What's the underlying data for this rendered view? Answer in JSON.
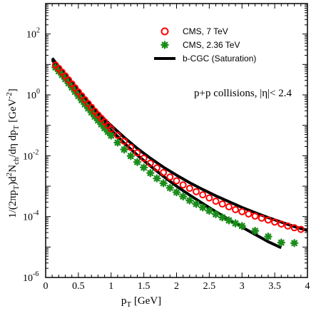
{
  "chart_data": {
    "type": "scatter",
    "xlabel": "p_T [GeV]",
    "ylabel": "1/(2πp_T)d²N_ch/dη dp_T [GeV⁻²]",
    "xlim": [
      0,
      4
    ],
    "ylim": [
      1e-06,
      1000
    ],
    "yscale": "log",
    "x_ticks": [
      "0",
      "0.5",
      "1",
      "1.5",
      "2",
      "2.5",
      "3",
      "3.5",
      "4"
    ],
    "x_tick_values": [
      0,
      0.5,
      1,
      1.5,
      2,
      2.5,
      3,
      3.5,
      4
    ],
    "y_ticks": [
      {
        "value": 1e-06,
        "base": "10",
        "exp": "-6"
      },
      {
        "value": 0.0001,
        "base": "10",
        "exp": "-4"
      },
      {
        "value": 0.01,
        "base": "10",
        "exp": "-2"
      },
      {
        "value": 1,
        "base": "10",
        "exp": "0"
      },
      {
        "value": 100,
        "base": "10",
        "exp": "2"
      }
    ],
    "legend_position": "top-right",
    "annotation": "p+p collisions, |η|< 2.4",
    "series": [
      {
        "name": "CMS, 7 TeV",
        "marker": "open-circle",
        "color": "#ff0000",
        "x": [
          0.15,
          0.2,
          0.25,
          0.3,
          0.35,
          0.4,
          0.45,
          0.5,
          0.55,
          0.6,
          0.65,
          0.7,
          0.75,
          0.8,
          0.85,
          0.9,
          0.95,
          1.0,
          1.1,
          1.2,
          1.3,
          1.4,
          1.5,
          1.6,
          1.7,
          1.8,
          1.9,
          2.0,
          2.1,
          2.2,
          2.3,
          2.4,
          2.5,
          2.6,
          2.7,
          2.8,
          2.9,
          3.0,
          3.1,
          3.2,
          3.3,
          3.4,
          3.5,
          3.6,
          3.7,
          3.8,
          3.9
        ],
        "y": [
          9.5,
          7.4,
          5.6,
          4.2,
          3.1,
          2.3,
          1.7,
          1.25,
          0.93,
          0.69,
          0.52,
          0.39,
          0.29,
          0.22,
          0.17,
          0.13,
          0.099,
          0.076,
          0.047,
          0.03,
          0.019,
          0.0125,
          0.0083,
          0.0057,
          0.004,
          0.0028,
          0.002,
          0.0015,
          0.0011,
          0.00085,
          0.00066,
          0.00052,
          0.00041,
          0.00032,
          0.00026,
          0.00021,
          0.00017,
          0.000145,
          0.000122,
          0.000104,
          8.9e-05,
          7.7e-05,
          6.6e-05,
          5.7e-05,
          4.9e-05,
          4.3e-05,
          3.8e-05
        ]
      },
      {
        "name": "CMS, 2.36 TeV",
        "marker": "asterisk",
        "color": "#1a8c1a",
        "x": [
          0.15,
          0.2,
          0.25,
          0.3,
          0.35,
          0.4,
          0.45,
          0.5,
          0.55,
          0.6,
          0.65,
          0.7,
          0.75,
          0.8,
          0.85,
          0.9,
          0.95,
          1.0,
          1.1,
          1.2,
          1.3,
          1.4,
          1.5,
          1.6,
          1.7,
          1.8,
          1.9,
          2.0,
          2.1,
          2.2,
          2.3,
          2.4,
          2.5,
          2.6,
          2.7,
          2.8,
          2.9,
          3.0,
          3.2,
          3.4,
          3.6,
          3.8
        ],
        "y": [
          8.0,
          6.0,
          4.5,
          3.3,
          2.4,
          1.75,
          1.27,
          0.92,
          0.67,
          0.49,
          0.36,
          0.265,
          0.195,
          0.145,
          0.108,
          0.081,
          0.061,
          0.046,
          0.027,
          0.016,
          0.0098,
          0.0062,
          0.0041,
          0.0027,
          0.0018,
          0.00125,
          0.00088,
          0.00063,
          0.00046,
          0.00034,
          0.00026,
          0.0002,
          0.000155,
          0.00012,
          9.4e-05,
          7.5e-05,
          6e-05,
          4.9e-05,
          3.4e-05,
          2.2e-05,
          1.4e-05,
          1.35e-05
        ]
      },
      {
        "name": "b-CGC (Saturation)",
        "marker": "line",
        "color": "#000000",
        "x": [
          0.1,
          0.2,
          0.3,
          0.4,
          0.5,
          0.6,
          0.7,
          0.8,
          0.9,
          1.0,
          1.2,
          1.4,
          1.6,
          1.8,
          2.0,
          2.2,
          2.4,
          2.6,
          2.8,
          3.0,
          3.2,
          3.4,
          3.6,
          3.8,
          4.0
        ],
        "y": [
          16,
          8.5,
          4.5,
          2.45,
          1.35,
          0.76,
          0.44,
          0.26,
          0.158,
          0.098,
          0.04,
          0.0175,
          0.0083,
          0.0042,
          0.0023,
          0.0013,
          0.00078,
          0.00048,
          0.00031,
          0.0002,
          0.000135,
          9.3e-05,
          6.6e-05,
          4.7e-05,
          3.5e-05
        ]
      },
      {
        "name": "",
        "marker": "line",
        "color": "#000000",
        "x": [
          0.1,
          0.2,
          0.3,
          0.4,
          0.5,
          0.6,
          0.7,
          0.8,
          0.9,
          1.0,
          1.2,
          1.4,
          1.6,
          1.8,
          2.0,
          2.2,
          2.4,
          2.6,
          2.8,
          3.0,
          3.2,
          3.4,
          3.6
        ],
        "y": [
          14,
          7.2,
          3.8,
          2.05,
          1.12,
          0.62,
          0.35,
          0.2,
          0.118,
          0.07,
          0.026,
          0.0105,
          0.0046,
          0.0021,
          0.001,
          0.00051,
          0.00027,
          0.000145,
          8e-05,
          4.5e-05,
          2.6e-05,
          1.5e-05,
          9.5e-06
        ]
      }
    ]
  }
}
